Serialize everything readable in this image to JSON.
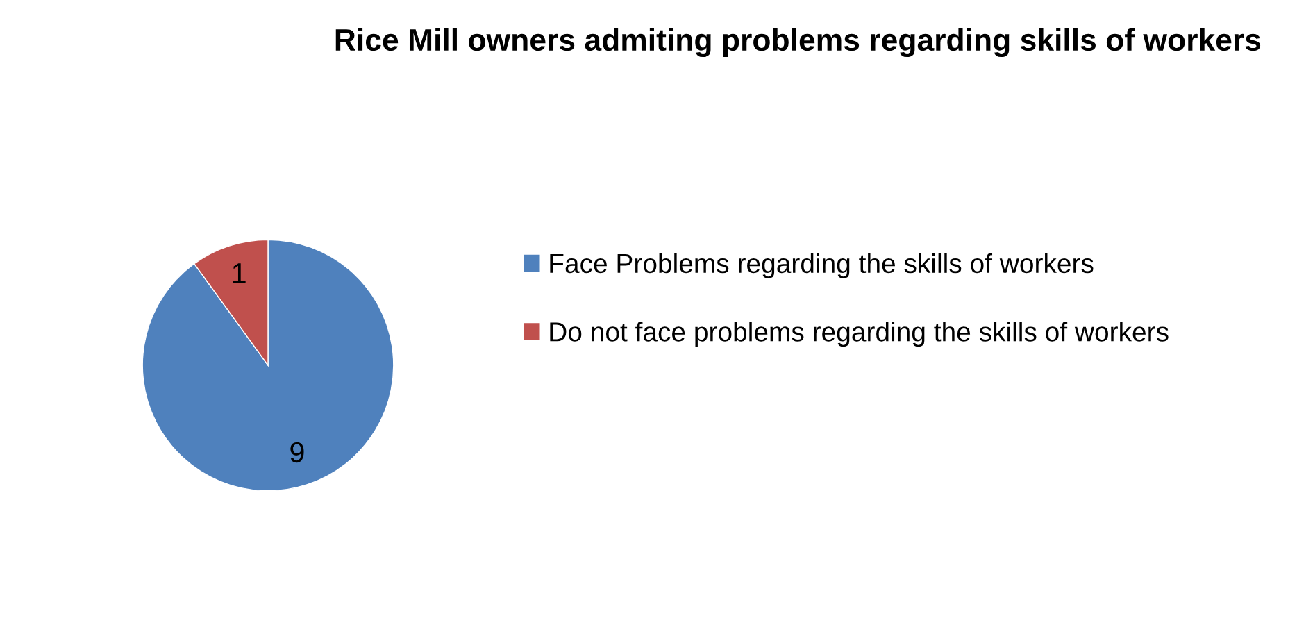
{
  "chart_data": {
    "type": "pie",
    "title": "Rice Mill owners admiting problems regarding skills of workers",
    "categories": [
      "Face Problems regarding the skills of workers",
      "Do not face problems regarding the skills of workers"
    ],
    "values": [
      9,
      1
    ],
    "colors": [
      "#4f81bd",
      "#c0504d"
    ],
    "data_labels": true,
    "legend": "right"
  }
}
